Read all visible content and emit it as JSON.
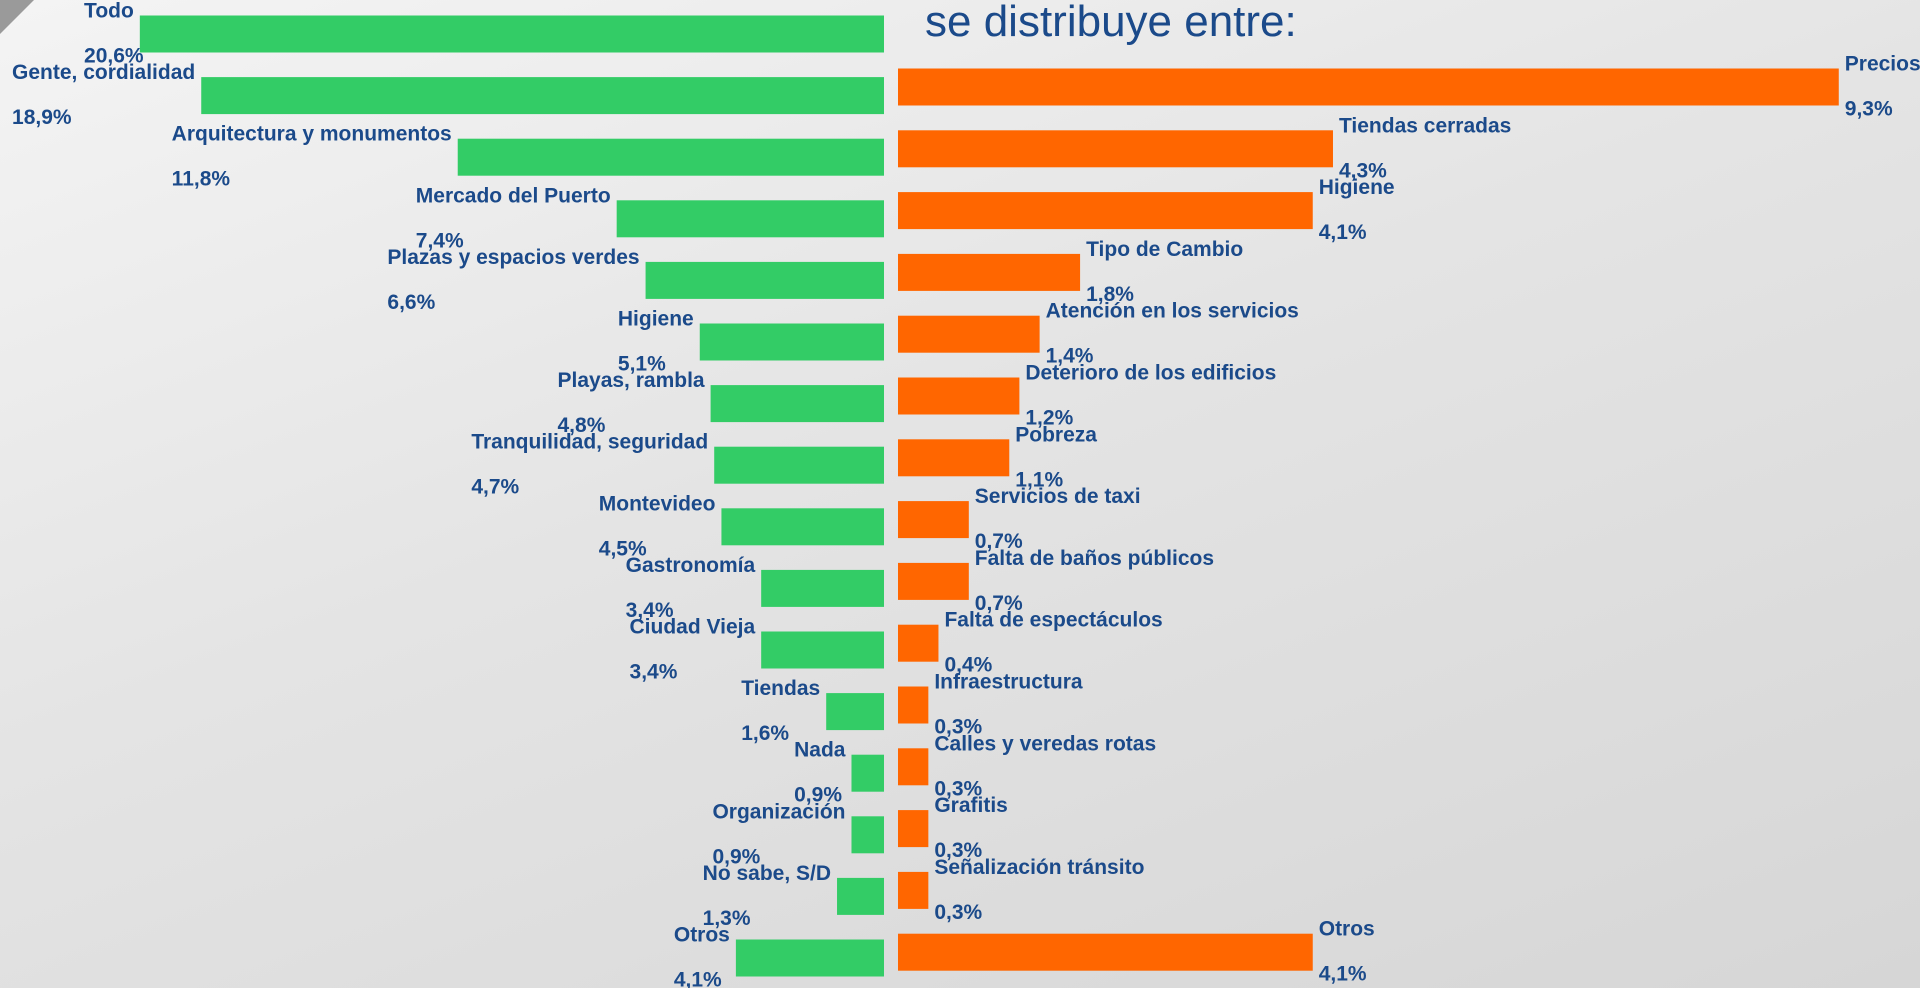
{
  "chart_data": [
    {
      "type": "bar",
      "orientation": "horizontal",
      "color": "#33cc66",
      "categories": [
        "Todo",
        "Gente, cordialidad",
        "Arquitectura y monumentos",
        "Mercado del Puerto",
        "Plazas y espacios verdes",
        "Higiene",
        "Playas, rambla",
        "Tranquilidad, seguridad",
        "Montevideo",
        "Gastronomía",
        "Ciudad Vieja",
        "Tiendas",
        "Nada",
        "Organización",
        "No sabe, S/D",
        "Otros"
      ],
      "values": [
        20.6,
        18.9,
        11.8,
        7.4,
        6.6,
        5.1,
        4.8,
        4.7,
        4.5,
        3.4,
        3.4,
        1.6,
        0.9,
        0.9,
        1.3,
        4.1
      ],
      "value_labels": [
        "20,6%",
        "18,9%",
        "11,8%",
        "7,4%",
        "6,6%",
        "5,1%",
        "4,8%",
        "4,7%",
        "4,5%",
        "3,4%",
        "3,4%",
        "1,6%",
        "0,9%",
        "0,9%",
        "1,3%",
        "4,1%"
      ],
      "xlim": [
        0,
        24
      ]
    },
    {
      "type": "bar",
      "orientation": "horizontal",
      "color": "#ff6600",
      "title": "se distribuye entre:",
      "categories": [
        "Precios",
        "Tiendas cerradas",
        "Higiene",
        "Tipo de Cambio",
        "Atención en los servicios",
        "Deterioro de los edificios",
        "Pobreza",
        "Servicios de taxi",
        "Falta de baños públicos",
        "Falta de espectáculos",
        "Infraestructura",
        "Calles y veredas rotas",
        "Grafitis",
        "Señalización tránsito",
        "Otros"
      ],
      "values": [
        9.3,
        4.3,
        4.1,
        1.8,
        1.4,
        1.2,
        1.1,
        0.7,
        0.7,
        0.4,
        0.3,
        0.3,
        0.3,
        0.3,
        4.1
      ],
      "value_labels": [
        "9,3%",
        "4,3%",
        "4,1%",
        "1,8%",
        "1,4%",
        "1,2%",
        "1,1%",
        "0,7%",
        "0,7%",
        "0,4%",
        "0,3%",
        "0,3%",
        "0,3%",
        "0,3%",
        "4,1%"
      ],
      "xlim": [
        0,
        9.5
      ]
    }
  ]
}
